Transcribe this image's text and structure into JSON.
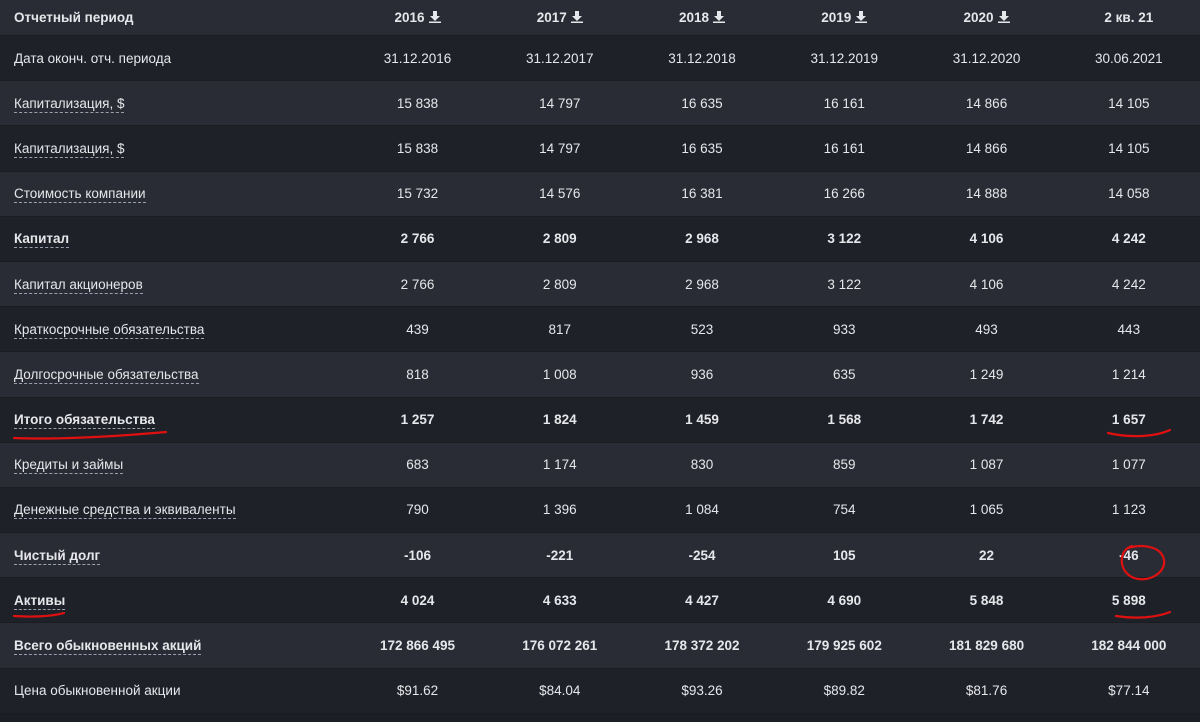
{
  "header": {
    "label": "Отчетный период",
    "columns": [
      "2016",
      "2017",
      "2018",
      "2019",
      "2020",
      "2 кв. 21"
    ]
  },
  "rows": [
    {
      "label": "Дата оконч. отч. периода",
      "link": false,
      "bold": false,
      "values": [
        "31.12.2016",
        "31.12.2017",
        "31.12.2018",
        "31.12.2019",
        "31.12.2020",
        "30.06.2021"
      ]
    },
    {
      "label": "Капитализация, $",
      "link": true,
      "bold": false,
      "values": [
        "15 838",
        "14 797",
        "16 635",
        "16 161",
        "14 866",
        "14 105"
      ]
    },
    {
      "label": "Капитализация, $",
      "link": true,
      "bold": false,
      "values": [
        "15 838",
        "14 797",
        "16 635",
        "16 161",
        "14 866",
        "14 105"
      ]
    },
    {
      "label": "Стоимость компании",
      "link": true,
      "bold": false,
      "values": [
        "15 732",
        "14 576",
        "16 381",
        "16 266",
        "14 888",
        "14 058"
      ]
    },
    {
      "label": "Капитал",
      "link": true,
      "bold": true,
      "values": [
        "2 766",
        "2 809",
        "2 968",
        "3 122",
        "4 106",
        "4 242"
      ]
    },
    {
      "label": "Капитал акционеров",
      "link": true,
      "bold": false,
      "values": [
        "2 766",
        "2 809",
        "2 968",
        "3 122",
        "4 106",
        "4 242"
      ]
    },
    {
      "label": "Краткосрочные обязательства",
      "link": true,
      "bold": false,
      "values": [
        "439",
        "817",
        "523",
        "933",
        "493",
        "443"
      ]
    },
    {
      "label": "Долгосрочные обязательства",
      "link": true,
      "bold": false,
      "values": [
        "818",
        "1 008",
        "936",
        "635",
        "1 249",
        "1 214"
      ]
    },
    {
      "label": "Итого обязательства",
      "link": true,
      "bold": true,
      "values": [
        "1 257",
        "1 824",
        "1 459",
        "1 568",
        "1 742",
        "1 657"
      ]
    },
    {
      "label": "Кредиты и займы",
      "link": true,
      "bold": false,
      "values": [
        "683",
        "1 174",
        "830",
        "859",
        "1 087",
        "1 077"
      ]
    },
    {
      "label": "Денежные средства и эквиваленты",
      "link": true,
      "bold": false,
      "values": [
        "790",
        "1 396",
        "1 084",
        "754",
        "1 065",
        "1 123"
      ]
    },
    {
      "label": "Чистый долг",
      "link": true,
      "bold": true,
      "values": [
        "-106",
        "-221",
        "-254",
        "105",
        "22",
        "-46"
      ]
    },
    {
      "label": "Активы",
      "link": true,
      "bold": true,
      "values": [
        "4 024",
        "4 633",
        "4 427",
        "4 690",
        "5 848",
        "5 898"
      ]
    },
    {
      "label": "Всего обыкновенных акций",
      "link": true,
      "bold": true,
      "values": [
        "172 866 495",
        "176 072 261",
        "178 372 202",
        "179 925 602",
        "181 829 680",
        "182 844 000"
      ]
    },
    {
      "label": "Цена обыкновенной акции",
      "link": false,
      "bold": false,
      "values": [
        "$91.62",
        "$84.04",
        "$93.26",
        "$89.82",
        "$81.76",
        "$77.14"
      ]
    }
  ],
  "colors": {
    "annotation": "#e01010",
    "row_odd": "#2a2c35",
    "row_even": "#1f2128"
  },
  "icons": {
    "download": "download-icon"
  }
}
